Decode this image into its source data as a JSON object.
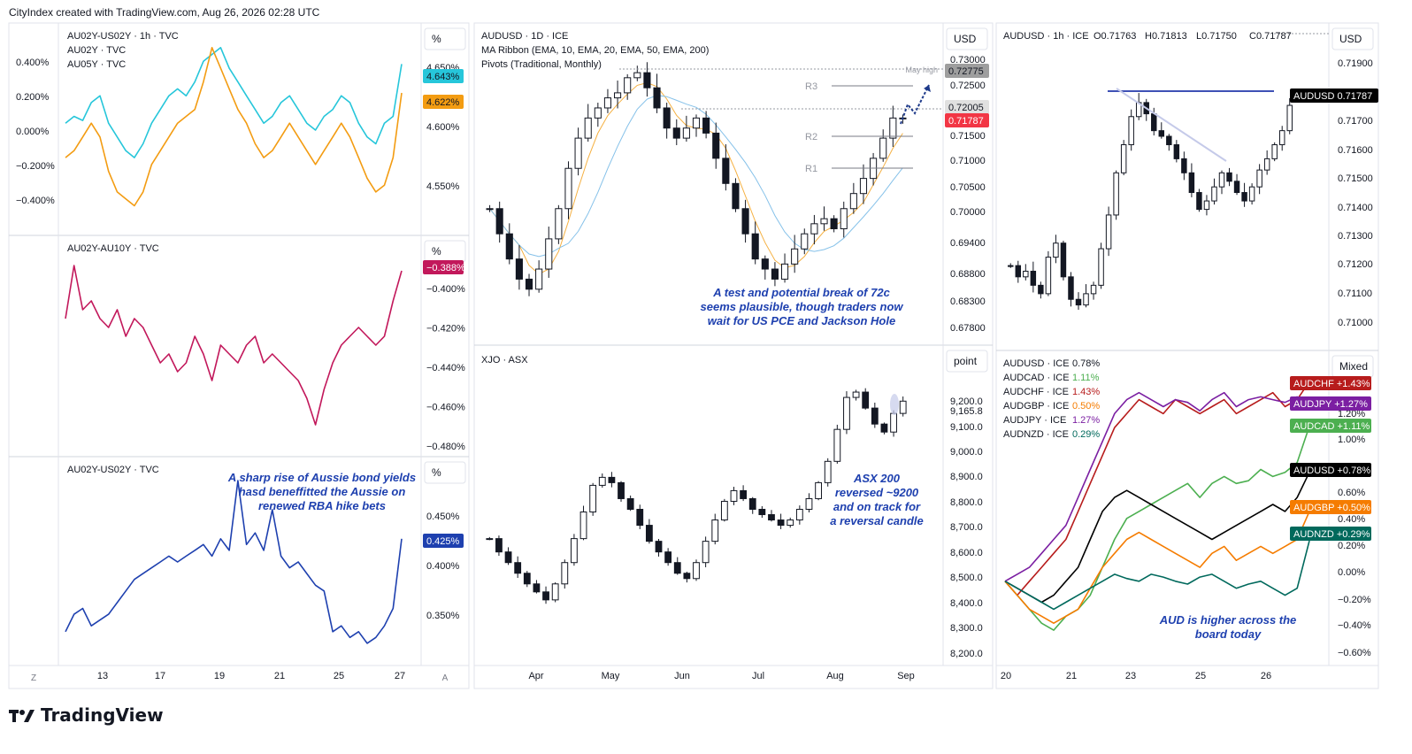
{
  "header": {
    "text": "CityIndex created with TradingView.com, Aug 26, 2026 02:28 UTC"
  },
  "logo": {
    "text": "TradingView"
  },
  "chart_data": [
    {
      "id": "p1",
      "type": "line",
      "legend": [
        "AU02Y-US02Y · 1h · TVC",
        "AU02Y · TVC",
        "AU05Y · TVC"
      ],
      "unit": "%",
      "left_ticks": [
        "0.400%",
        "0.200%",
        "0.000%",
        "−0.200%",
        "−0.400%"
      ],
      "right_ticks": [
        "4.650%",
        "4.600%",
        "4.550%"
      ],
      "badges": [
        {
          "text": "4.643%",
          "color": "#26c6da"
        },
        {
          "text": "4.622%",
          "color": "#f39c12"
        }
      ],
      "series": [
        {
          "name": "AU02Y",
          "color": "#26c6da",
          "values": [
            4.6,
            4.605,
            4.602,
            4.615,
            4.62,
            4.6,
            4.59,
            4.58,
            4.575,
            4.585,
            4.6,
            4.61,
            4.62,
            4.625,
            4.62,
            4.63,
            4.645,
            4.65,
            4.655,
            4.64,
            4.63,
            4.62,
            4.61,
            4.6,
            4.605,
            4.615,
            4.62,
            4.61,
            4.6,
            4.595,
            4.605,
            4.61,
            4.62,
            4.615,
            4.6,
            4.59,
            4.585,
            4.6,
            4.605,
            4.643
          ]
        },
        {
          "name": "AU05Y",
          "color": "#f39c12",
          "values": [
            4.575,
            4.58,
            4.59,
            4.6,
            4.59,
            4.565,
            4.55,
            4.545,
            4.54,
            4.55,
            4.57,
            4.58,
            4.59,
            4.6,
            4.605,
            4.61,
            4.63,
            4.655,
            4.64,
            4.625,
            4.61,
            4.6,
            4.585,
            4.575,
            4.58,
            4.59,
            4.6,
            4.59,
            4.58,
            4.57,
            4.58,
            4.59,
            4.6,
            4.59,
            4.575,
            4.56,
            4.55,
            4.555,
            4.575,
            4.622
          ]
        }
      ]
    },
    {
      "id": "p2",
      "type": "line",
      "legend": [
        "AU02Y-AU10Y · TVC"
      ],
      "unit": "%",
      "right_ticks": [
        "−0.400%",
        "−0.420%",
        "−0.440%",
        "−0.460%",
        "−0.480%"
      ],
      "badges": [
        {
          "text": "−0.388%",
          "color": "#c2185b"
        }
      ],
      "series": [
        {
          "name": "AU02Y-AU10Y",
          "color": "#c2185b",
          "values": [
            -0.415,
            -0.385,
            -0.41,
            -0.405,
            -0.415,
            -0.42,
            -0.41,
            -0.425,
            -0.415,
            -0.42,
            -0.43,
            -0.44,
            -0.435,
            -0.445,
            -0.44,
            -0.425,
            -0.435,
            -0.45,
            -0.43,
            -0.435,
            -0.44,
            -0.43,
            -0.425,
            -0.44,
            -0.435,
            -0.44,
            -0.445,
            -0.45,
            -0.46,
            -0.475,
            -0.455,
            -0.44,
            -0.43,
            -0.425,
            -0.42,
            -0.425,
            -0.43,
            -0.425,
            -0.405,
            -0.388
          ]
        }
      ]
    },
    {
      "id": "p3",
      "type": "line",
      "legend": [
        "AU02Y-US02Y · TVC"
      ],
      "unit": "%",
      "right_ticks": [
        "0.450%",
        "0.400%",
        "0.350%"
      ],
      "badges": [
        {
          "text": "0.425%",
          "color": "#1e40af"
        }
      ],
      "annotation": [
        "A sharp rise of Aussie bond yields",
        "hasd beneffitted the Aussie on",
        "renewed RBA hike bets"
      ],
      "x_ticks": [
        "13",
        "17",
        "19",
        "21",
        "25",
        "27"
      ],
      "series": [
        {
          "name": "AU02Y-US02Y",
          "color": "#1e40af",
          "values": [
            0.345,
            0.36,
            0.365,
            0.35,
            0.355,
            0.36,
            0.37,
            0.38,
            0.39,
            0.395,
            0.4,
            0.405,
            0.41,
            0.405,
            0.41,
            0.415,
            0.42,
            0.41,
            0.425,
            0.415,
            0.475,
            0.42,
            0.43,
            0.415,
            0.45,
            0.41,
            0.4,
            0.405,
            0.395,
            0.385,
            0.38,
            0.345,
            0.35,
            0.34,
            0.345,
            0.335,
            0.34,
            0.35,
            0.365,
            0.425
          ]
        }
      ]
    },
    {
      "id": "p4",
      "type": "candlestick",
      "legend": [
        "AUDUSD · 1D · ICE",
        "MA Ribbon (EMA, 10, EMA, 20, EMA, 50, EMA, 200)",
        "Pivots (Traditional, Monthly)"
      ],
      "unit": "USD",
      "right_ticks": [
        "0.73000",
        "0.72500",
        "0.72005",
        "0.71500",
        "0.71000",
        "0.70500",
        "0.70000",
        "0.69400",
        "0.68800",
        "0.68300",
        "0.67800"
      ],
      "badges": [
        {
          "text": "0.72775",
          "color": "#9e9e9e"
        },
        {
          "text": "0.72005",
          "color": "#e0e0e0"
        },
        {
          "text": "0.71787",
          "color": "#f23645"
        }
      ],
      "pivots": [
        "R3",
        "R2",
        "R1"
      ],
      "may_high": "May high",
      "annotation": [
        "A test and potential break of 72c",
        "seems plausible, though traders now",
        "wait for US PCE and Jackson Hole"
      ],
      "closes": [
        0.7,
        0.695,
        0.69,
        0.686,
        0.684,
        0.688,
        0.694,
        0.7,
        0.708,
        0.714,
        0.718,
        0.72,
        0.722,
        0.723,
        0.726,
        0.727,
        0.724,
        0.72,
        0.716,
        0.714,
        0.716,
        0.718,
        0.715,
        0.71,
        0.705,
        0.7,
        0.695,
        0.69,
        0.688,
        0.686,
        0.689,
        0.692,
        0.695,
        0.697,
        0.698,
        0.696,
        0.7,
        0.703,
        0.706,
        0.71,
        0.714,
        0.718,
        0.7179
      ]
    },
    {
      "id": "p5",
      "type": "candlestick",
      "legend": [
        "XJO · ASX"
      ],
      "unit": "point",
      "right_ticks": [
        "9,200.0",
        "9,165.8",
        "9,100.0",
        "9,000.0",
        "8,900.0",
        "8,800.0",
        "8,700.0",
        "8,600.0",
        "8,500.0",
        "8,400.0",
        "8,300.0",
        "8,200.0"
      ],
      "annotation": [
        "ASX 200",
        "reversed ~9200",
        "and on track for",
        "a reversal candle"
      ],
      "x_ticks": [
        "Apr",
        "May",
        "Jun",
        "Jul",
        "Aug",
        "Sep"
      ],
      "closes": [
        8650,
        8600,
        8560,
        8520,
        8480,
        8450,
        8420,
        8480,
        8560,
        8650,
        8750,
        8850,
        8880,
        8860,
        8800,
        8760,
        8700,
        8640,
        8600,
        8560,
        8520,
        8500,
        8560,
        8640,
        8720,
        8790,
        8830,
        8800,
        8760,
        8740,
        8720,
        8700,
        8720,
        8760,
        8800,
        8860,
        8940,
        9060,
        9180,
        9200,
        9140,
        9080,
        9050,
        9120,
        9166
      ]
    },
    {
      "id": "p6",
      "type": "candlestick",
      "legend": [
        "AUDUSD · 1h · ICE",
        "O0.71763",
        "H0.71813",
        "L0.71750",
        "C0.71787"
      ],
      "unit": "USD",
      "right_ticks": [
        "0.71900",
        "0.71787",
        "0.71700",
        "0.71600",
        "0.71500",
        "0.71400",
        "0.71300",
        "0.71200",
        "0.71100",
        "0.71000"
      ],
      "badges": [
        {
          "text": "AUDUSD  0.71787",
          "color": "#000000"
        }
      ],
      "closes": [
        0.7122,
        0.7118,
        0.712,
        0.7115,
        0.7112,
        0.7125,
        0.713,
        0.7118,
        0.711,
        0.7108,
        0.7112,
        0.7115,
        0.7128,
        0.714,
        0.7155,
        0.7165,
        0.7175,
        0.718,
        0.7176,
        0.717,
        0.7168,
        0.7165,
        0.716,
        0.7155,
        0.7148,
        0.7142,
        0.7145,
        0.715,
        0.7155,
        0.7152,
        0.7148,
        0.7145,
        0.715,
        0.7156,
        0.716,
        0.7165,
        0.717,
        0.7179
      ]
    },
    {
      "id": "p7",
      "type": "line",
      "legend": [
        {
          "label": "AUDUSD · ICE",
          "value": "0.78%",
          "color": "#131722"
        },
        {
          "label": "AUDCAD · ICE",
          "value": "1.11%",
          "color": "#4caf50"
        },
        {
          "label": "AUDCHF · ICE",
          "value": "1.43%",
          "color": "#b71c1c"
        },
        {
          "label": "AUDGBP · ICE",
          "value": "0.50%",
          "color": "#f57c00"
        },
        {
          "label": "AUDJPY · ICE",
          "value": "1.27%",
          "color": "#7b1fa2"
        },
        {
          "label": "AUDNZD · ICE",
          "value": "0.29%",
          "color": "#00695c"
        }
      ],
      "unit": "Mixed",
      "right_ticks": [
        "1.20%",
        "1.00%",
        "0.60%",
        "0.40%",
        "0.20%",
        "0.00%",
        "−0.20%",
        "−0.40%",
        "−0.60%"
      ],
      "badges": [
        {
          "text": "AUDCHF  +1.43%",
          "color": "#b71c1c"
        },
        {
          "text": "AUDJPY  +1.27%",
          "color": "#7b1fa2"
        },
        {
          "text": "AUDCAD  +1.11%",
          "color": "#4caf50"
        },
        {
          "text": "AUDUSD  +0.78%",
          "color": "#000000"
        },
        {
          "text": "AUDGBP  +0.50%",
          "color": "#f57c00"
        },
        {
          "text": "AUDNZD  +0.29%",
          "color": "#00695c"
        }
      ],
      "annotation": [
        "AUD is higher across the",
        "board today"
      ],
      "x_ticks": [
        "20",
        "21",
        "23",
        "25",
        "26"
      ],
      "series": [
        {
          "name": "AUDCHF",
          "color": "#b71c1c",
          "values": [
            0.0,
            -0.1,
            0.0,
            0.1,
            0.2,
            0.3,
            0.5,
            0.7,
            0.9,
            1.1,
            1.2,
            1.3,
            1.25,
            1.2,
            1.3,
            1.25,
            1.2,
            1.25,
            1.3,
            1.2,
            1.25,
            1.3,
            1.35,
            1.25,
            1.3,
            1.43
          ]
        },
        {
          "name": "AUDJPY",
          "color": "#7b1fa2",
          "values": [
            0.0,
            0.05,
            0.1,
            0.2,
            0.3,
            0.4,
            0.6,
            0.8,
            1.0,
            1.2,
            1.3,
            1.35,
            1.3,
            1.25,
            1.3,
            1.28,
            1.22,
            1.3,
            1.35,
            1.25,
            1.3,
            1.32,
            1.3,
            1.28,
            1.32,
            1.27
          ]
        },
        {
          "name": "AUDCAD",
          "color": "#4caf50",
          "values": [
            0.0,
            -0.1,
            -0.2,
            -0.3,
            -0.35,
            -0.25,
            -0.2,
            -0.1,
            0.1,
            0.3,
            0.45,
            0.5,
            0.55,
            0.6,
            0.65,
            0.7,
            0.6,
            0.7,
            0.75,
            0.7,
            0.72,
            0.8,
            0.75,
            0.78,
            0.85,
            1.11
          ]
        },
        {
          "name": "AUDUSD",
          "color": "#000000",
          "values": [
            0.0,
            -0.05,
            -0.1,
            -0.15,
            -0.1,
            0.0,
            0.1,
            0.3,
            0.5,
            0.6,
            0.65,
            0.6,
            0.55,
            0.5,
            0.45,
            0.4,
            0.35,
            0.3,
            0.35,
            0.4,
            0.45,
            0.5,
            0.55,
            0.5,
            0.6,
            0.78
          ]
        },
        {
          "name": "AUDGBP",
          "color": "#f57c00",
          "values": [
            0.0,
            -0.1,
            -0.2,
            -0.25,
            -0.3,
            -0.25,
            -0.2,
            -0.05,
            0.1,
            0.2,
            0.3,
            0.35,
            0.3,
            0.25,
            0.2,
            0.15,
            0.1,
            0.2,
            0.25,
            0.15,
            0.2,
            0.25,
            0.2,
            0.25,
            0.3,
            0.5
          ]
        },
        {
          "name": "AUDNZD",
          "color": "#00695c",
          "values": [
            0.0,
            -0.05,
            -0.1,
            -0.15,
            -0.2,
            -0.15,
            -0.1,
            -0.05,
            0.0,
            0.05,
            0.02,
            0.0,
            0.05,
            0.03,
            0.0,
            -0.02,
            0.03,
            0.05,
            0.0,
            -0.05,
            -0.02,
            0.0,
            -0.05,
            -0.1,
            -0.05,
            0.29
          ]
        }
      ]
    }
  ]
}
